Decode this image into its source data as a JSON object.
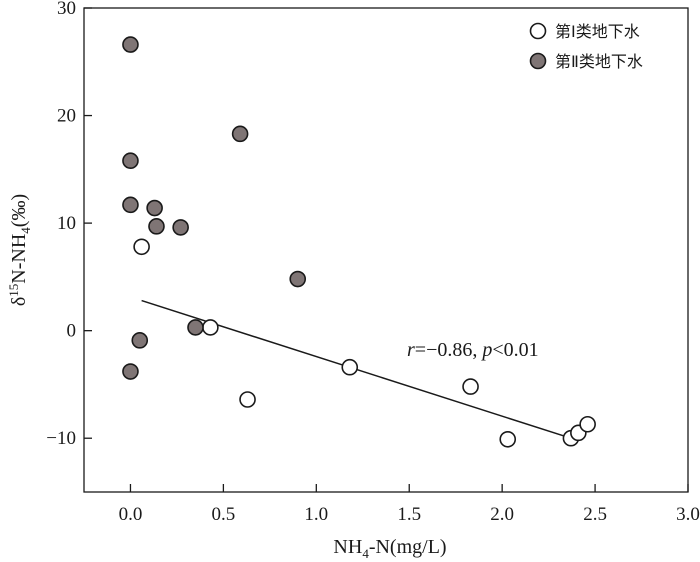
{
  "chart_data": {
    "type": "scatter",
    "xlabel_parts": [
      "NH",
      "4",
      "-N(mg/L)"
    ],
    "ylabel_parts": [
      "δ",
      "15",
      "N-NH",
      "4",
      "(‰)"
    ],
    "xlim": [
      -0.25,
      3.0
    ],
    "ylim": [
      -15,
      30
    ],
    "x_ticks": [
      0.0,
      0.5,
      1.0,
      1.5,
      2.0,
      2.5,
      3.0
    ],
    "x_tick_labels": [
      "0.0",
      "0.5",
      "1.0",
      "1.5",
      "2.0",
      "2.5",
      "3.0"
    ],
    "y_ticks": [
      -10,
      0,
      10,
      20,
      30
    ],
    "y_tick_labels": [
      "−10",
      "0",
      "10",
      "20",
      "30"
    ],
    "grid": false,
    "legend_position": "top-right",
    "series": [
      {
        "name": "第Ⅰ类地下水",
        "marker": "open-circle",
        "color": "#ffffff",
        "edge_color": "#1a1a1a",
        "points": [
          {
            "x": 0.06,
            "y": 7.8
          },
          {
            "x": 0.43,
            "y": 0.3
          },
          {
            "x": 0.63,
            "y": -6.4
          },
          {
            "x": 1.18,
            "y": -3.4
          },
          {
            "x": 1.83,
            "y": -5.2
          },
          {
            "x": 2.03,
            "y": -10.1
          },
          {
            "x": 2.37,
            "y": -10.0
          },
          {
            "x": 2.41,
            "y": -9.5
          },
          {
            "x": 2.46,
            "y": -8.7
          }
        ]
      },
      {
        "name": "第Ⅱ类地下水",
        "marker": "filled-circle",
        "color": "#7f7575",
        "edge_color": "#1a1a1a",
        "points": [
          {
            "x": 0.0,
            "y": 26.6
          },
          {
            "x": 0.0,
            "y": 15.8
          },
          {
            "x": 0.0,
            "y": 11.7
          },
          {
            "x": 0.0,
            "y": -3.8
          },
          {
            "x": 0.05,
            "y": -0.9
          },
          {
            "x": 0.13,
            "y": 11.4
          },
          {
            "x": 0.14,
            "y": 9.7
          },
          {
            "x": 0.27,
            "y": 9.6
          },
          {
            "x": 0.35,
            "y": 0.3
          },
          {
            "x": 0.59,
            "y": 18.3
          },
          {
            "x": 0.9,
            "y": 4.8
          }
        ]
      }
    ],
    "fit_line": {
      "x": [
        0.06,
        2.37
      ],
      "y": [
        2.8,
        -10.0
      ]
    },
    "annotation_parts": [
      {
        "text": "r",
        "italic": true
      },
      {
        "text": "=−0.86, ",
        "italic": false
      },
      {
        "text": "p",
        "italic": true
      },
      {
        "text": "<0.01",
        "italic": false
      }
    ]
  }
}
